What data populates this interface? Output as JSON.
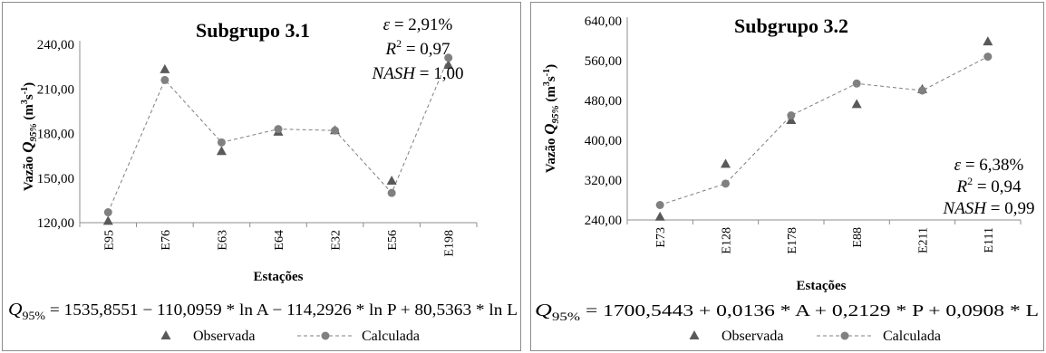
{
  "chart_data": [
    {
      "type": "line",
      "title": "Subgrupo 3.1",
      "xlabel": "Estações",
      "ylabel": "Vazão Q95% (m³s⁻¹)",
      "ylabel_parts": {
        "prefix": "Vazão ",
        "q": "Q",
        "sub": "95%",
        "unit": " (m",
        "sup1": "3",
        "s": "s",
        "sup2": "-1",
        "close": ")"
      },
      "categories": [
        "E95",
        "E76",
        "E63",
        "E64",
        "E32",
        "E56",
        "E198"
      ],
      "yticks": [
        "120,00",
        "150,00",
        "180,00",
        "210,00",
        "240,00"
      ],
      "ylim": [
        120,
        240
      ],
      "grid": false,
      "series": [
        {
          "name": "Observada",
          "marker": "triangle",
          "line": "none",
          "values": [
            121,
            223,
            168,
            181,
            182,
            148,
            226
          ]
        },
        {
          "name": "Calculada",
          "marker": "circle",
          "line": "dashed",
          "values": [
            127,
            216,
            174,
            183,
            182,
            140,
            231
          ]
        }
      ],
      "stats": [
        "ε = 2,91%",
        "R² = 0,97",
        "NASH = 1,00"
      ],
      "stats_parts": [
        {
          "sym": "ε",
          "sup": "",
          "val": " = 2,91%"
        },
        {
          "sym": "R",
          "sup": "2",
          "val": " = 0,97"
        },
        {
          "sym": "NASH",
          "sup": "",
          "val": " = 1,00"
        }
      ],
      "equation": "Q95% = 1535,8551 − 110,0959 * ln A − 114,2926 * ln P + 80,5363 * ln L",
      "equation_parts": {
        "q": "Q",
        "sub": "95%",
        "rhs": " = 1535,8551 − 110,0959 * ln A − 114,2926 * ln P + 80,5363 * ln L"
      },
      "legend": [
        "Observada",
        "Calculada"
      ],
      "colors": {
        "observed": "#595959",
        "calculated": "#808080",
        "line": "#7f7f7f"
      }
    },
    {
      "type": "line",
      "title": "Subgrupo 3.2",
      "xlabel": "Estações",
      "ylabel": "Vazão Q95% (m³s⁻¹)",
      "ylabel_parts": {
        "prefix": "Vazão ",
        "q": "Q",
        "sub": "95%",
        "unit": " (m",
        "sup1": "3",
        "s": "s",
        "sup2": "-1",
        "close": ")"
      },
      "categories": [
        "E73",
        "E128",
        "E178",
        "E88",
        "E211",
        "E111"
      ],
      "yticks": [
        "240,00",
        "320,00",
        "400,00",
        "480,00",
        "560,00",
        "640,00"
      ],
      "ylim": [
        240,
        640
      ],
      "grid": false,
      "series": [
        {
          "name": "Observada",
          "marker": "triangle",
          "line": "none",
          "values": [
            246,
            352,
            440,
            472,
            502,
            598
          ]
        },
        {
          "name": "Calculada",
          "marker": "circle",
          "line": "dashed",
          "values": [
            270,
            313,
            450,
            514,
            500,
            568
          ]
        }
      ],
      "stats": [
        "ε = 6,38%",
        "R² = 0,94",
        "NASH = 0,99"
      ],
      "stats_parts": [
        {
          "sym": "ε",
          "sup": "",
          "val": " = 6,38%"
        },
        {
          "sym": "R",
          "sup": "2",
          "val": " = 0,94"
        },
        {
          "sym": "NASH",
          "sup": "",
          "val": " = 0,99"
        }
      ],
      "equation": "Q95% = 1700,5443 + 0,0136 * A + 0,2129 * P + 0,0908 * L",
      "equation_parts": {
        "q": "Q",
        "sub": "95%",
        "rhs": " = 1700,5443 + 0,0136 * A + 0,2129 * P + 0,0908 * L"
      },
      "legend": [
        "Observada",
        "Calculada"
      ],
      "colors": {
        "observed": "#595959",
        "calculated": "#808080",
        "line": "#7f7f7f"
      }
    }
  ]
}
